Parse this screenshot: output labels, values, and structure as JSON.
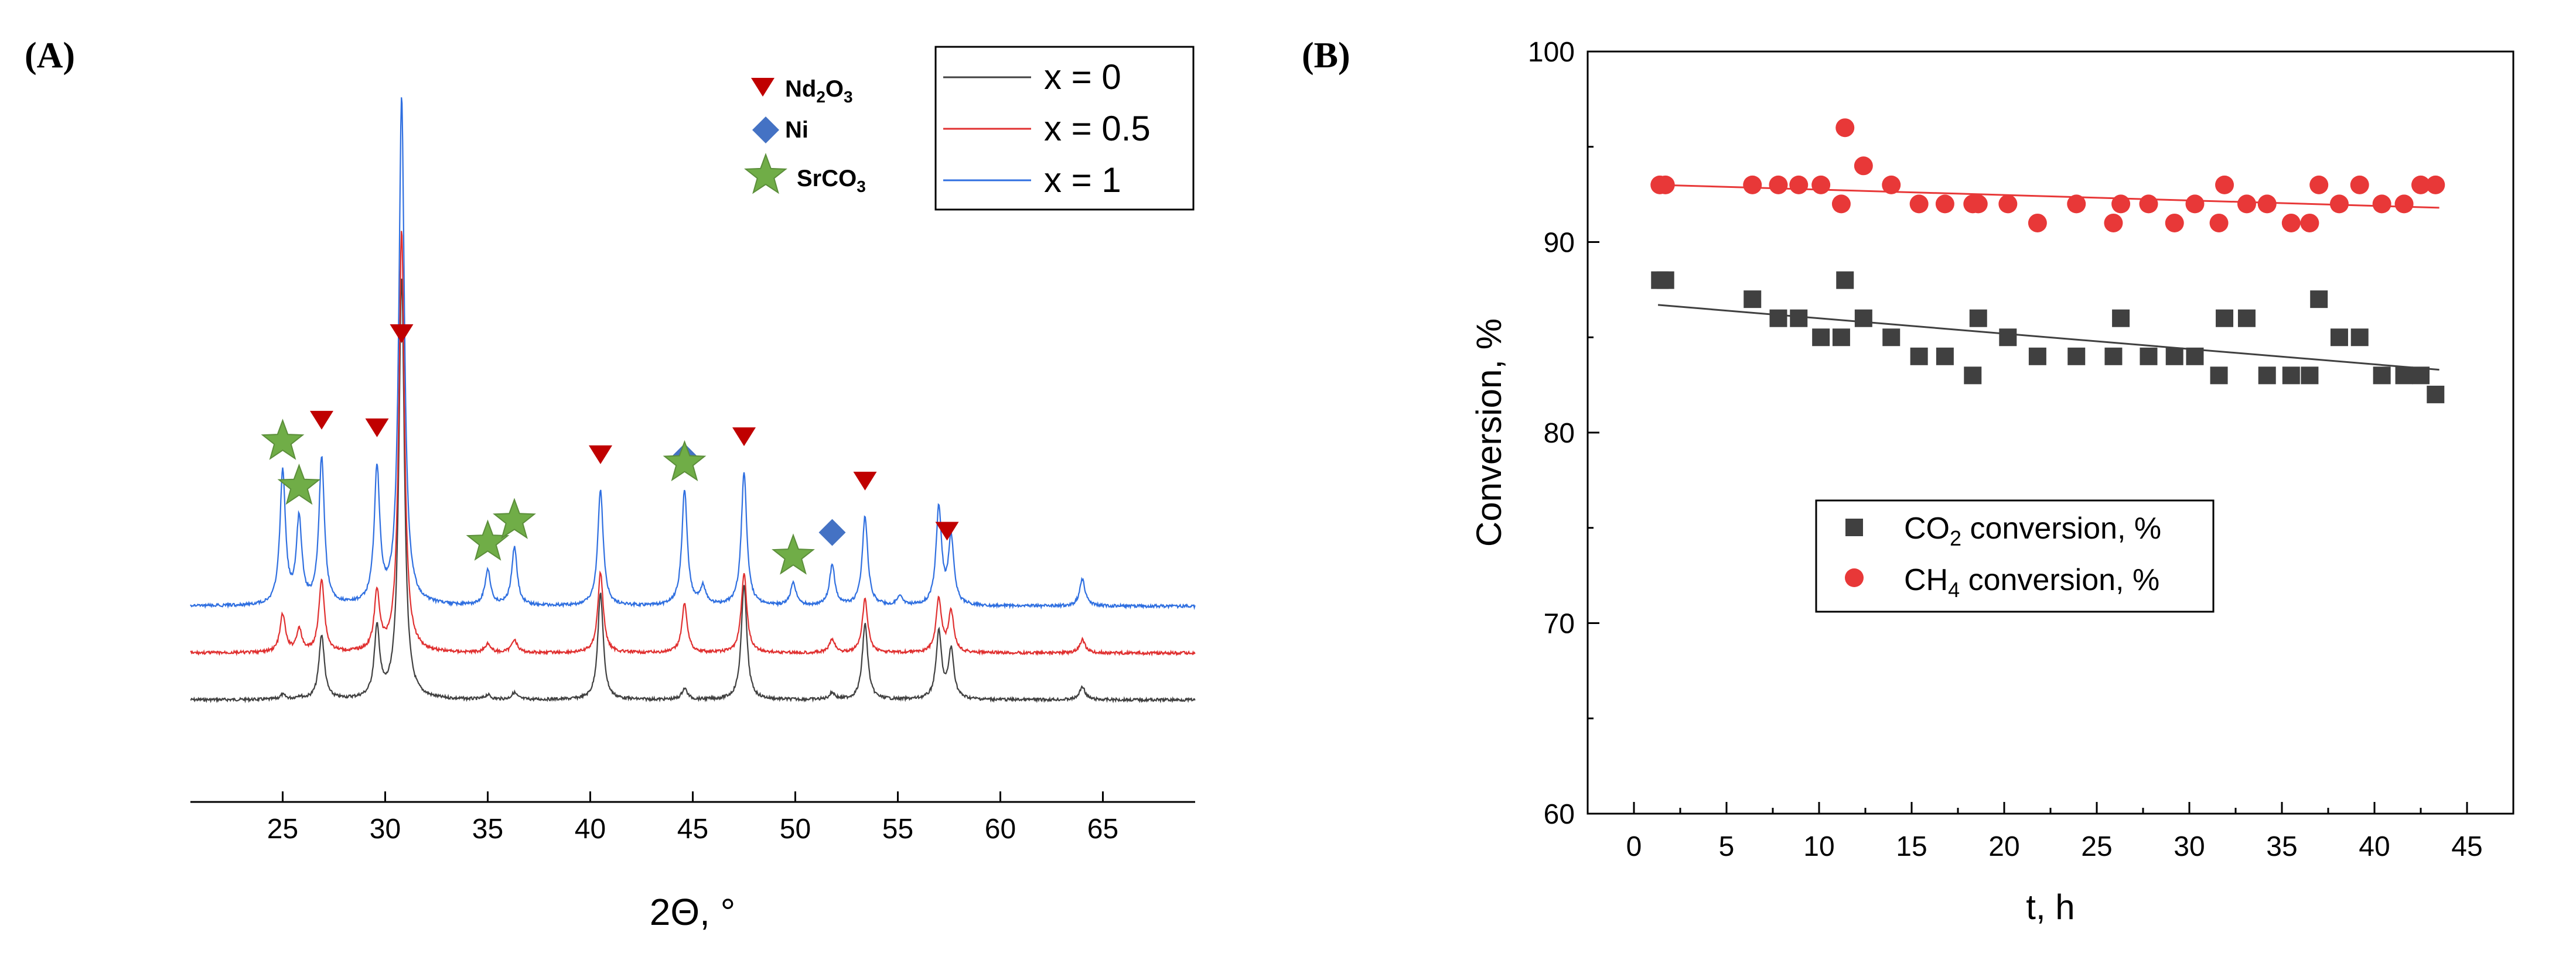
{
  "panel_a": {
    "label": "(A)",
    "legend_markers": [
      {
        "name": "Nd2O3",
        "base": "Nd",
        "sub1": "2",
        "mid": "O",
        "sub2": "3",
        "marker": "down-triangle",
        "color": "#C00000"
      },
      {
        "name": "Ni",
        "base": "Ni",
        "sub1": "",
        "mid": "",
        "sub2": "",
        "marker": "diamond",
        "color": "#4472C4"
      },
      {
        "name": "SrCO3",
        "base": "SrCO",
        "sub1": "3",
        "mid": "",
        "sub2": "",
        "marker": "star",
        "color": "#70AD47"
      }
    ],
    "legend_series": [
      {
        "label": "x = 0",
        "color": "#404040"
      },
      {
        "label": "x = 0.5",
        "color": "#E03030"
      },
      {
        "label": "x = 1",
        "color": "#2F6FE0"
      }
    ]
  },
  "panel_b": {
    "label": "(B)",
    "legend": [
      {
        "base": "CO",
        "sub": "2",
        "rest": " conversion, %",
        "marker": "square",
        "color": "#404040"
      },
      {
        "base": "CH",
        "sub": "4",
        "rest": " conversion, %",
        "marker": "circle",
        "color": "#E83838"
      }
    ]
  },
  "chart_data": [
    {
      "type": "line",
      "title": "",
      "xlabel": "2Θ, °",
      "ylabel": "",
      "xlim": [
        20.5,
        69.5
      ],
      "xticks": [
        25,
        30,
        35,
        40,
        45,
        50,
        55,
        60,
        65
      ],
      "yticks_shown": false,
      "offsets": [
        0,
        1,
        2
      ],
      "baseline_intensity": 0.15,
      "peaks": {
        "x0": [
          [
            25.0,
            0.1
          ],
          [
            25.8,
            0.06
          ],
          [
            26.9,
            1.45
          ],
          [
            29.6,
            1.55
          ],
          [
            30.8,
            9.5
          ],
          [
            35.0,
            0.1
          ],
          [
            36.3,
            0.15
          ],
          [
            40.5,
            2.4
          ],
          [
            44.6,
            0.25
          ],
          [
            47.5,
            2.6
          ],
          [
            51.8,
            0.15
          ],
          [
            53.4,
            1.7
          ],
          [
            57.0,
            1.5
          ],
          [
            57.6,
            1.1
          ],
          [
            64.0,
            0.3
          ]
        ],
        "x05": [
          [
            25.0,
            0.85
          ],
          [
            25.8,
            0.5
          ],
          [
            26.9,
            1.65
          ],
          [
            29.6,
            1.3
          ],
          [
            30.8,
            9.5
          ],
          [
            35.0,
            0.2
          ],
          [
            36.3,
            0.3
          ],
          [
            40.5,
            1.8
          ],
          [
            44.6,
            1.1
          ],
          [
            47.5,
            1.8
          ],
          [
            51.8,
            0.3
          ],
          [
            53.4,
            1.2
          ],
          [
            57.0,
            1.2
          ],
          [
            57.6,
            0.9
          ],
          [
            64.0,
            0.3
          ]
        ],
        "x1": [
          [
            25.0,
            3.0
          ],
          [
            25.8,
            1.9
          ],
          [
            26.9,
            3.3
          ],
          [
            29.6,
            3.0
          ],
          [
            30.8,
            11.4
          ],
          [
            35.0,
            0.8
          ],
          [
            36.3,
            1.3
          ],
          [
            40.5,
            2.6
          ],
          [
            44.6,
            2.6
          ],
          [
            45.5,
            0.4
          ],
          [
            47.5,
            3.0
          ],
          [
            49.9,
            0.5
          ],
          [
            51.8,
            0.9
          ],
          [
            53.4,
            2.0
          ],
          [
            55.1,
            0.2
          ],
          [
            57.0,
            2.2
          ],
          [
            57.6,
            1.5
          ],
          [
            64.0,
            0.6
          ]
        ]
      },
      "series": [
        {
          "name": "x = 0",
          "color": "#404040"
        },
        {
          "name": "x = 0.5",
          "color": "#E03030"
        },
        {
          "name": "x = 1",
          "color": "#2F6FE0"
        }
      ],
      "markers": {
        "Nd2O3": [
          26.9,
          29.6,
          30.8,
          40.5,
          47.5,
          53.4,
          57.4
        ],
        "Ni": [
          44.6,
          51.8
        ],
        "SrCO3": [
          25.0,
          25.8,
          35.0,
          36.3,
          44.6,
          49.9
        ]
      }
    },
    {
      "type": "scatter",
      "title": "",
      "xlabel": "t, h",
      "ylabel": "Conversion, %",
      "xlim": [
        -2.5,
        47.5
      ],
      "ylim": [
        60,
        100
      ],
      "xticks": [
        0,
        5,
        10,
        15,
        20,
        25,
        30,
        35,
        40,
        45
      ],
      "yticks": [
        60,
        70,
        80,
        90,
        100
      ],
      "series": [
        {
          "name": "CO2 conversion, %",
          "color": "#404040",
          "marker": "square",
          "points": [
            [
              1.4,
              88
            ],
            [
              1.7,
              88
            ],
            [
              6.4,
              87
            ],
            [
              7.8,
              86
            ],
            [
              8.9,
              86
            ],
            [
              10.1,
              85
            ],
            [
              11.2,
              85
            ],
            [
              11.4,
              88
            ],
            [
              12.4,
              86
            ],
            [
              13.9,
              85
            ],
            [
              15.4,
              84
            ],
            [
              16.8,
              84
            ],
            [
              18.3,
              83
            ],
            [
              18.6,
              86
            ],
            [
              20.2,
              85
            ],
            [
              21.8,
              84
            ],
            [
              23.9,
              84
            ],
            [
              25.9,
              84
            ],
            [
              26.3,
              86
            ],
            [
              27.8,
              84
            ],
            [
              29.2,
              84
            ],
            [
              30.3,
              84
            ],
            [
              31.6,
              83
            ],
            [
              31.9,
              86
            ],
            [
              33.1,
              86
            ],
            [
              34.2,
              83
            ],
            [
              35.5,
              83
            ],
            [
              36.5,
              83
            ],
            [
              37.0,
              87
            ],
            [
              38.1,
              85
            ],
            [
              39.2,
              85
            ],
            [
              40.4,
              83
            ],
            [
              41.6,
              83
            ],
            [
              42.5,
              83
            ],
            [
              43.3,
              82
            ]
          ],
          "trend": [
            [
              1.3,
              86.7
            ],
            [
              43.5,
              83.3
            ]
          ]
        },
        {
          "name": "CH4 conversion, %",
          "color": "#E83838",
          "marker": "circle",
          "points": [
            [
              1.4,
              93
            ],
            [
              1.7,
              93
            ],
            [
              6.4,
              93
            ],
            [
              7.8,
              93
            ],
            [
              8.9,
              93
            ],
            [
              10.1,
              93
            ],
            [
              11.2,
              92
            ],
            [
              11.4,
              96
            ],
            [
              12.4,
              94
            ],
            [
              13.9,
              93
            ],
            [
              15.4,
              92
            ],
            [
              16.8,
              92
            ],
            [
              18.3,
              92
            ],
            [
              18.6,
              92
            ],
            [
              20.2,
              92
            ],
            [
              21.8,
              91
            ],
            [
              23.9,
              92
            ],
            [
              25.9,
              91
            ],
            [
              26.3,
              92
            ],
            [
              27.8,
              92
            ],
            [
              29.2,
              91
            ],
            [
              30.3,
              92
            ],
            [
              31.6,
              91
            ],
            [
              31.9,
              93
            ],
            [
              33.1,
              92
            ],
            [
              34.2,
              92
            ],
            [
              35.5,
              91
            ],
            [
              36.5,
              91
            ],
            [
              37.0,
              93
            ],
            [
              38.1,
              92
            ],
            [
              39.2,
              93
            ],
            [
              40.4,
              92
            ],
            [
              41.6,
              92
            ],
            [
              42.5,
              93
            ],
            [
              43.3,
              93
            ]
          ],
          "trend": [
            [
              1.3,
              93.0
            ],
            [
              43.5,
              91.8
            ]
          ]
        }
      ]
    }
  ]
}
